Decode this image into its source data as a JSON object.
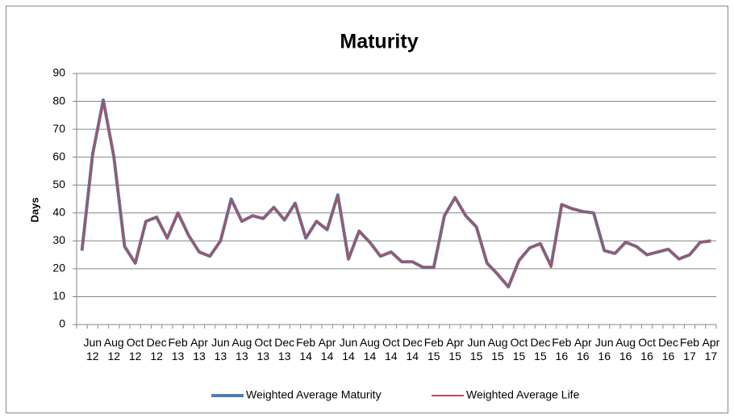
{
  "chart_data": {
    "type": "line",
    "title": "Maturity",
    "y_label": "Days",
    "categories": [
      null,
      "Jun 12",
      null,
      "Aug 12",
      null,
      "Oct 12",
      null,
      "Dec 12",
      null,
      "Feb 13",
      null,
      "Apr 13",
      null,
      "Jun 13",
      null,
      "Aug 13",
      null,
      "Oct 13",
      null,
      "Dec 13",
      null,
      "Feb 14",
      null,
      "Apr 14",
      null,
      "Jun 14",
      null,
      "Aug 14",
      null,
      "Oct 14",
      null,
      "Dec 14",
      null,
      "Feb 15",
      null,
      "Apr 15",
      null,
      "Jun 15",
      null,
      "Aug 15",
      null,
      "Oct 15",
      null,
      "Dec 15",
      null,
      "Feb 16",
      null,
      "Apr 16",
      null,
      "Jun 16",
      null,
      "Aug 16",
      null,
      "Oct 16",
      null,
      "Dec 16",
      null,
      "Feb 17",
      null,
      "Apr 17"
    ],
    "series": [
      {
        "name": "Weighted Average Maturity",
        "color": "#4a7ebb",
        "values": [
          26.5,
          61,
          80.5,
          60,
          28,
          22,
          37,
          38.5,
          31,
          40,
          32,
          26,
          24.5,
          30,
          45,
          37,
          39,
          38,
          42,
          37.5,
          43.5,
          31,
          37,
          34,
          46.5,
          23.5,
          33.5,
          29.5,
          24.5,
          26,
          22.5,
          22.5,
          20.5,
          20.5,
          39,
          45.5,
          39,
          35,
          22,
          18,
          13.5,
          23,
          27.5,
          29,
          21,
          43,
          41.5,
          40.5,
          40,
          26.5,
          25.5,
          29.5,
          28,
          25,
          26,
          27,
          23.5,
          25,
          29.5,
          30
        ]
      },
      {
        "name": "Weighted Average Life",
        "color": "#be4b48",
        "values": [
          26.5,
          61,
          80,
          60,
          28,
          22,
          37,
          38.5,
          31,
          40,
          32,
          26,
          24.5,
          30,
          44.5,
          37,
          39,
          38,
          42,
          37.5,
          43.5,
          31,
          37,
          34,
          46,
          23.5,
          33.5,
          29.5,
          24.5,
          26,
          22.5,
          22.5,
          20.5,
          20.5,
          39,
          45.5,
          39,
          35,
          22,
          18,
          13.5,
          23,
          27.5,
          29,
          20.5,
          43,
          41.5,
          40.5,
          40,
          26.5,
          25.5,
          29.5,
          28,
          25,
          26,
          27,
          23.5,
          25,
          29.5,
          30
        ]
      }
    ],
    "ylim": [
      0,
      90
    ],
    "yticks": [
      0,
      10,
      20,
      30,
      40,
      50,
      60,
      70,
      80,
      90
    ],
    "grid": true,
    "legend": "bottom"
  }
}
